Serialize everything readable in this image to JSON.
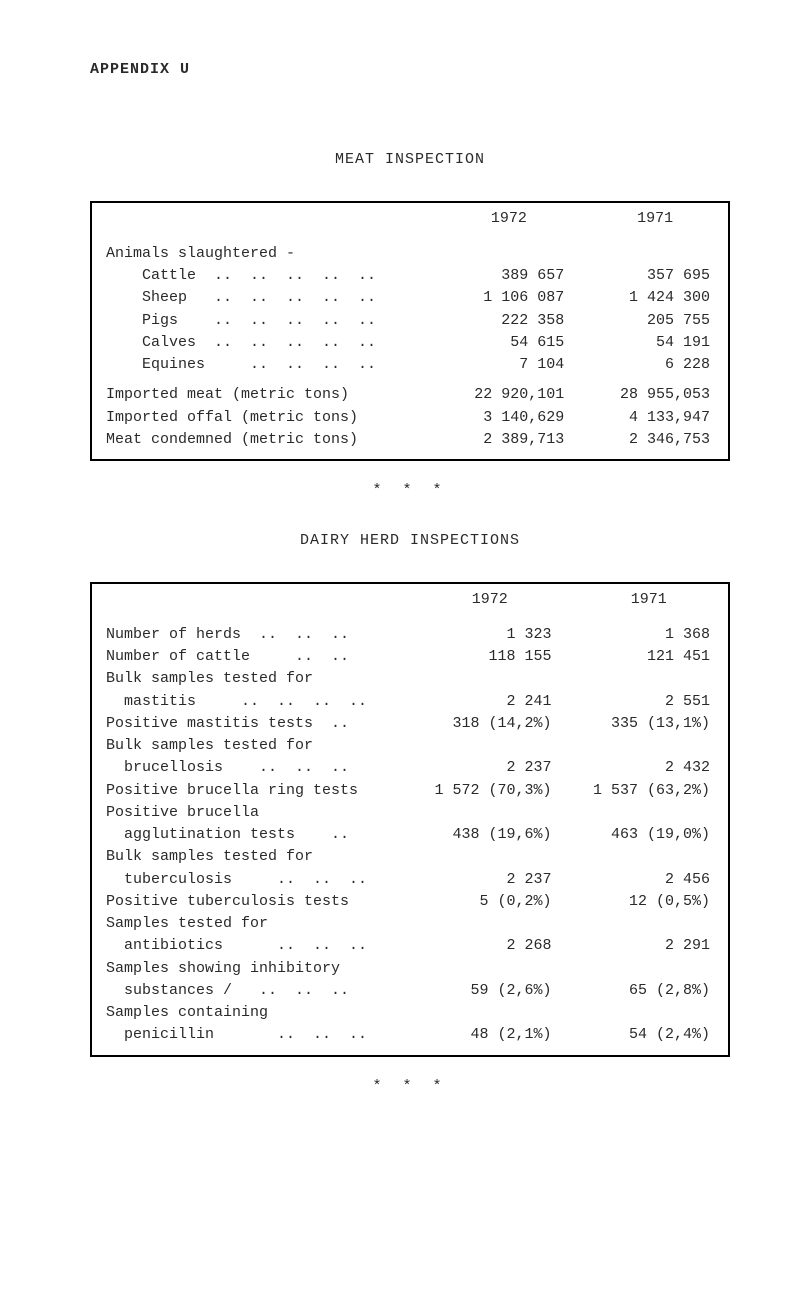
{
  "appendix": "APPENDIX U",
  "section1": {
    "title": "MEAT INSPECTION",
    "col1972": "1972",
    "col1971": "1971",
    "rows": [
      {
        "label": "Animals slaughtered -",
        "v72": "",
        "v71": ""
      },
      {
        "label": "    Cattle  ..  ..  ..  ..  ..",
        "v72": "389 657",
        "v71": "357 695"
      },
      {
        "label": "    Sheep   ..  ..  ..  ..  ..",
        "v72": "1 106 087",
        "v71": "1 424 300"
      },
      {
        "label": "    Pigs    ..  ..  ..  ..  ..",
        "v72": "222 358",
        "v71": "205 755"
      },
      {
        "label": "    Calves  ..  ..  ..  ..  ..",
        "v72": "54 615",
        "v71": "54 191"
      },
      {
        "label": "    Equines     ..  ..  ..  ..",
        "v72": "7 104",
        "v71": "6 228"
      }
    ],
    "rows2": [
      {
        "label": "Imported meat (metric tons)",
        "v72": "22 920,101",
        "v71": "28 955,053"
      },
      {
        "label": "Imported offal (metric tons)",
        "v72": "3 140,629",
        "v71": "4 133,947"
      },
      {
        "label": "Meat condemned (metric tons)",
        "v72": "2 389,713",
        "v71": "2 346,753"
      }
    ]
  },
  "stars": "* * *",
  "section2": {
    "title": "DAIRY HERD INSPECTIONS",
    "col1972": "1972",
    "col1971": "1971",
    "rows": [
      {
        "label": "Number of herds  ..  ..  ..",
        "v72": "1 323",
        "v71": "1 368"
      },
      {
        "label": "Number of cattle     ..  ..",
        "v72": "118 155",
        "v71": "121 451"
      },
      {
        "label": "Bulk samples tested for",
        "v72": "",
        "v71": ""
      },
      {
        "label": "  mastitis     ..  ..  ..  ..",
        "v72": "2 241",
        "v71": "2 551"
      },
      {
        "label": "Positive mastitis tests  ..",
        "v72": "318 (14,2%)",
        "v71": "335 (13,1%)"
      },
      {
        "label": "Bulk samples tested for",
        "v72": "",
        "v71": ""
      },
      {
        "label": "  brucellosis    ..  ..  ..",
        "v72": "2 237",
        "v71": "2 432"
      },
      {
        "label": "Positive brucella ring tests",
        "v72": "1 572 (70,3%)",
        "v71": "1 537 (63,2%)"
      },
      {
        "label": "Positive brucella",
        "v72": "",
        "v71": ""
      },
      {
        "label": "  agglutination tests    ..",
        "v72": "438 (19,6%)",
        "v71": "463 (19,0%)"
      },
      {
        "label": "Bulk samples tested for",
        "v72": "",
        "v71": ""
      },
      {
        "label": "  tuberculosis     ..  ..  ..",
        "v72": "2 237",
        "v71": "2 456"
      },
      {
        "label": "Positive tuberculosis tests",
        "v72": "5 (0,2%)",
        "v71": "12 (0,5%)"
      },
      {
        "label": "Samples tested for",
        "v72": "",
        "v71": ""
      },
      {
        "label": "  antibiotics      ..  ..  ..",
        "v72": "2 268",
        "v71": "2 291"
      },
      {
        "label": "Samples showing inhibitory",
        "v72": "",
        "v71": ""
      },
      {
        "label": "  substances /   ..  ..  ..",
        "v72": "59 (2,6%)",
        "v71": "65 (2,8%)"
      },
      {
        "label": "Samples containing",
        "v72": "",
        "v71": ""
      },
      {
        "label": "  penicillin       ..  ..  ..",
        "v72": "48 (2,1%)",
        "v71": "54 (2,4%)"
      }
    ]
  }
}
